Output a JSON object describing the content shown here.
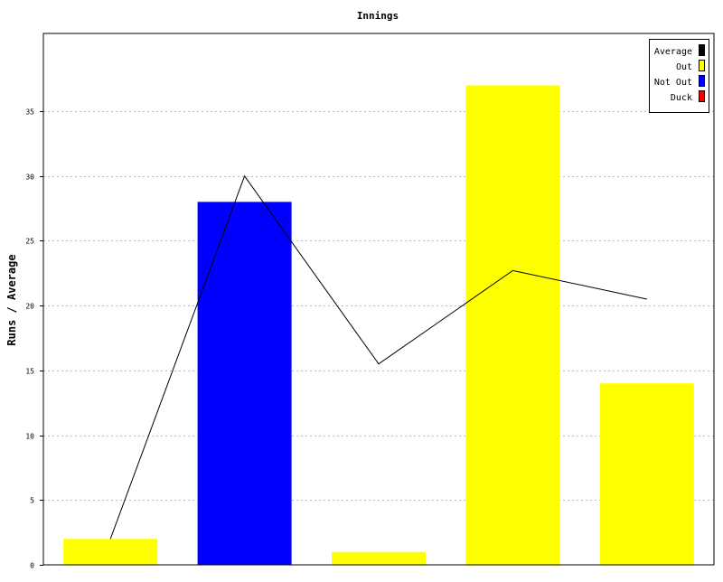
{
  "chart_data": {
    "type": "bar",
    "title": "Innings",
    "xlabel": "",
    "ylabel": "Runs / Average",
    "ylim": [
      0,
      41
    ],
    "yticks": [
      0,
      5,
      10,
      15,
      20,
      25,
      30,
      35
    ],
    "categories": [
      "",
      "",
      "",
      "",
      ""
    ],
    "bars": [
      {
        "value": 2,
        "status": "Out"
      },
      {
        "value": 28,
        "status": "Not Out"
      },
      {
        "value": 1,
        "status": "Out"
      },
      {
        "value": 37,
        "status": "Out"
      },
      {
        "value": 14,
        "status": "Out"
      }
    ],
    "series": [
      {
        "name": "Average",
        "type": "line",
        "values": [
          2,
          30,
          15.5,
          22.7,
          20.5
        ]
      }
    ],
    "legend": {
      "placement": "top-right",
      "items": [
        {
          "label": "Average",
          "color": "#000000"
        },
        {
          "label": "Out",
          "color": "#ffff00"
        },
        {
          "label": "Not Out",
          "color": "#0000ff"
        },
        {
          "label": "Duck",
          "color": "#ff0000"
        }
      ]
    },
    "colors": {
      "Out": "#ffff00",
      "Not Out": "#0000ff",
      "Duck": "#ff0000",
      "Average": "#000000"
    },
    "grid": true
  }
}
